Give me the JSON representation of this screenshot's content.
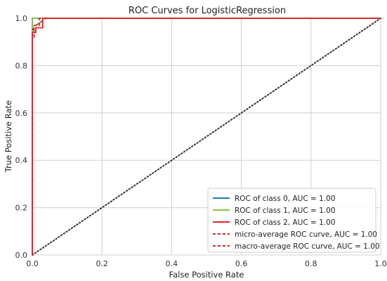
{
  "chart_data": {
    "type": "line",
    "title": "ROC Curves for LogisticRegression",
    "xlabel": "False Positive Rate",
    "ylabel": "True Positive Rate",
    "xlim": [
      0.0,
      1.0
    ],
    "ylim": [
      0.0,
      1.0
    ],
    "xticks": [
      "0.0",
      "0.2",
      "0.4",
      "0.6",
      "0.8",
      "1.0"
    ],
    "yticks": [
      "0.0",
      "0.2",
      "0.4",
      "0.6",
      "0.8",
      "1.0"
    ],
    "grid": true,
    "legend_position": "lower-right",
    "series": [
      {
        "name": "ROC of class 0, AUC = 1.00",
        "color": "#1f77b4",
        "style": "solid",
        "x": [
          0.0,
          0.0,
          1.0
        ],
        "y": [
          0.0,
          1.0,
          1.0
        ]
      },
      {
        "name": "ROC of class 1, AUC = 1.00",
        "color": "#8bc34a",
        "style": "solid",
        "x": [
          0.0,
          0.0,
          1.0
        ],
        "y": [
          0.0,
          1.0,
          1.0
        ]
      },
      {
        "name": "ROC of class 2, AUC = 1.00",
        "color": "#d62728",
        "style": "solid",
        "x": [
          0.0,
          0.0,
          0.01,
          0.01,
          0.03,
          0.03,
          1.0
        ],
        "y": [
          0.0,
          0.94,
          0.94,
          0.96,
          0.96,
          1.0,
          1.0
        ]
      },
      {
        "name": "micro-average ROC curve, AUC = 1.00",
        "color": "#d62728",
        "style": "dashed",
        "x": [
          0.0,
          0.0,
          0.005,
          0.005,
          0.02,
          0.02,
          1.0
        ],
        "y": [
          0.0,
          0.92,
          0.92,
          0.97,
          0.97,
          1.0,
          1.0
        ]
      },
      {
        "name": "macro-average ROC curve, AUC = 1.00",
        "color": "#d62728",
        "style": "dashed",
        "x": [
          0.0,
          0.0,
          0.01,
          0.02,
          0.03,
          0.04,
          1.0
        ],
        "y": [
          0.0,
          0.95,
          0.97,
          0.98,
          0.99,
          1.0,
          1.0
        ]
      }
    ],
    "diagonal": {
      "x": [
        0.0,
        1.0
      ],
      "y": [
        0.0,
        1.0
      ],
      "color": "#333333",
      "style": "dotted"
    }
  }
}
